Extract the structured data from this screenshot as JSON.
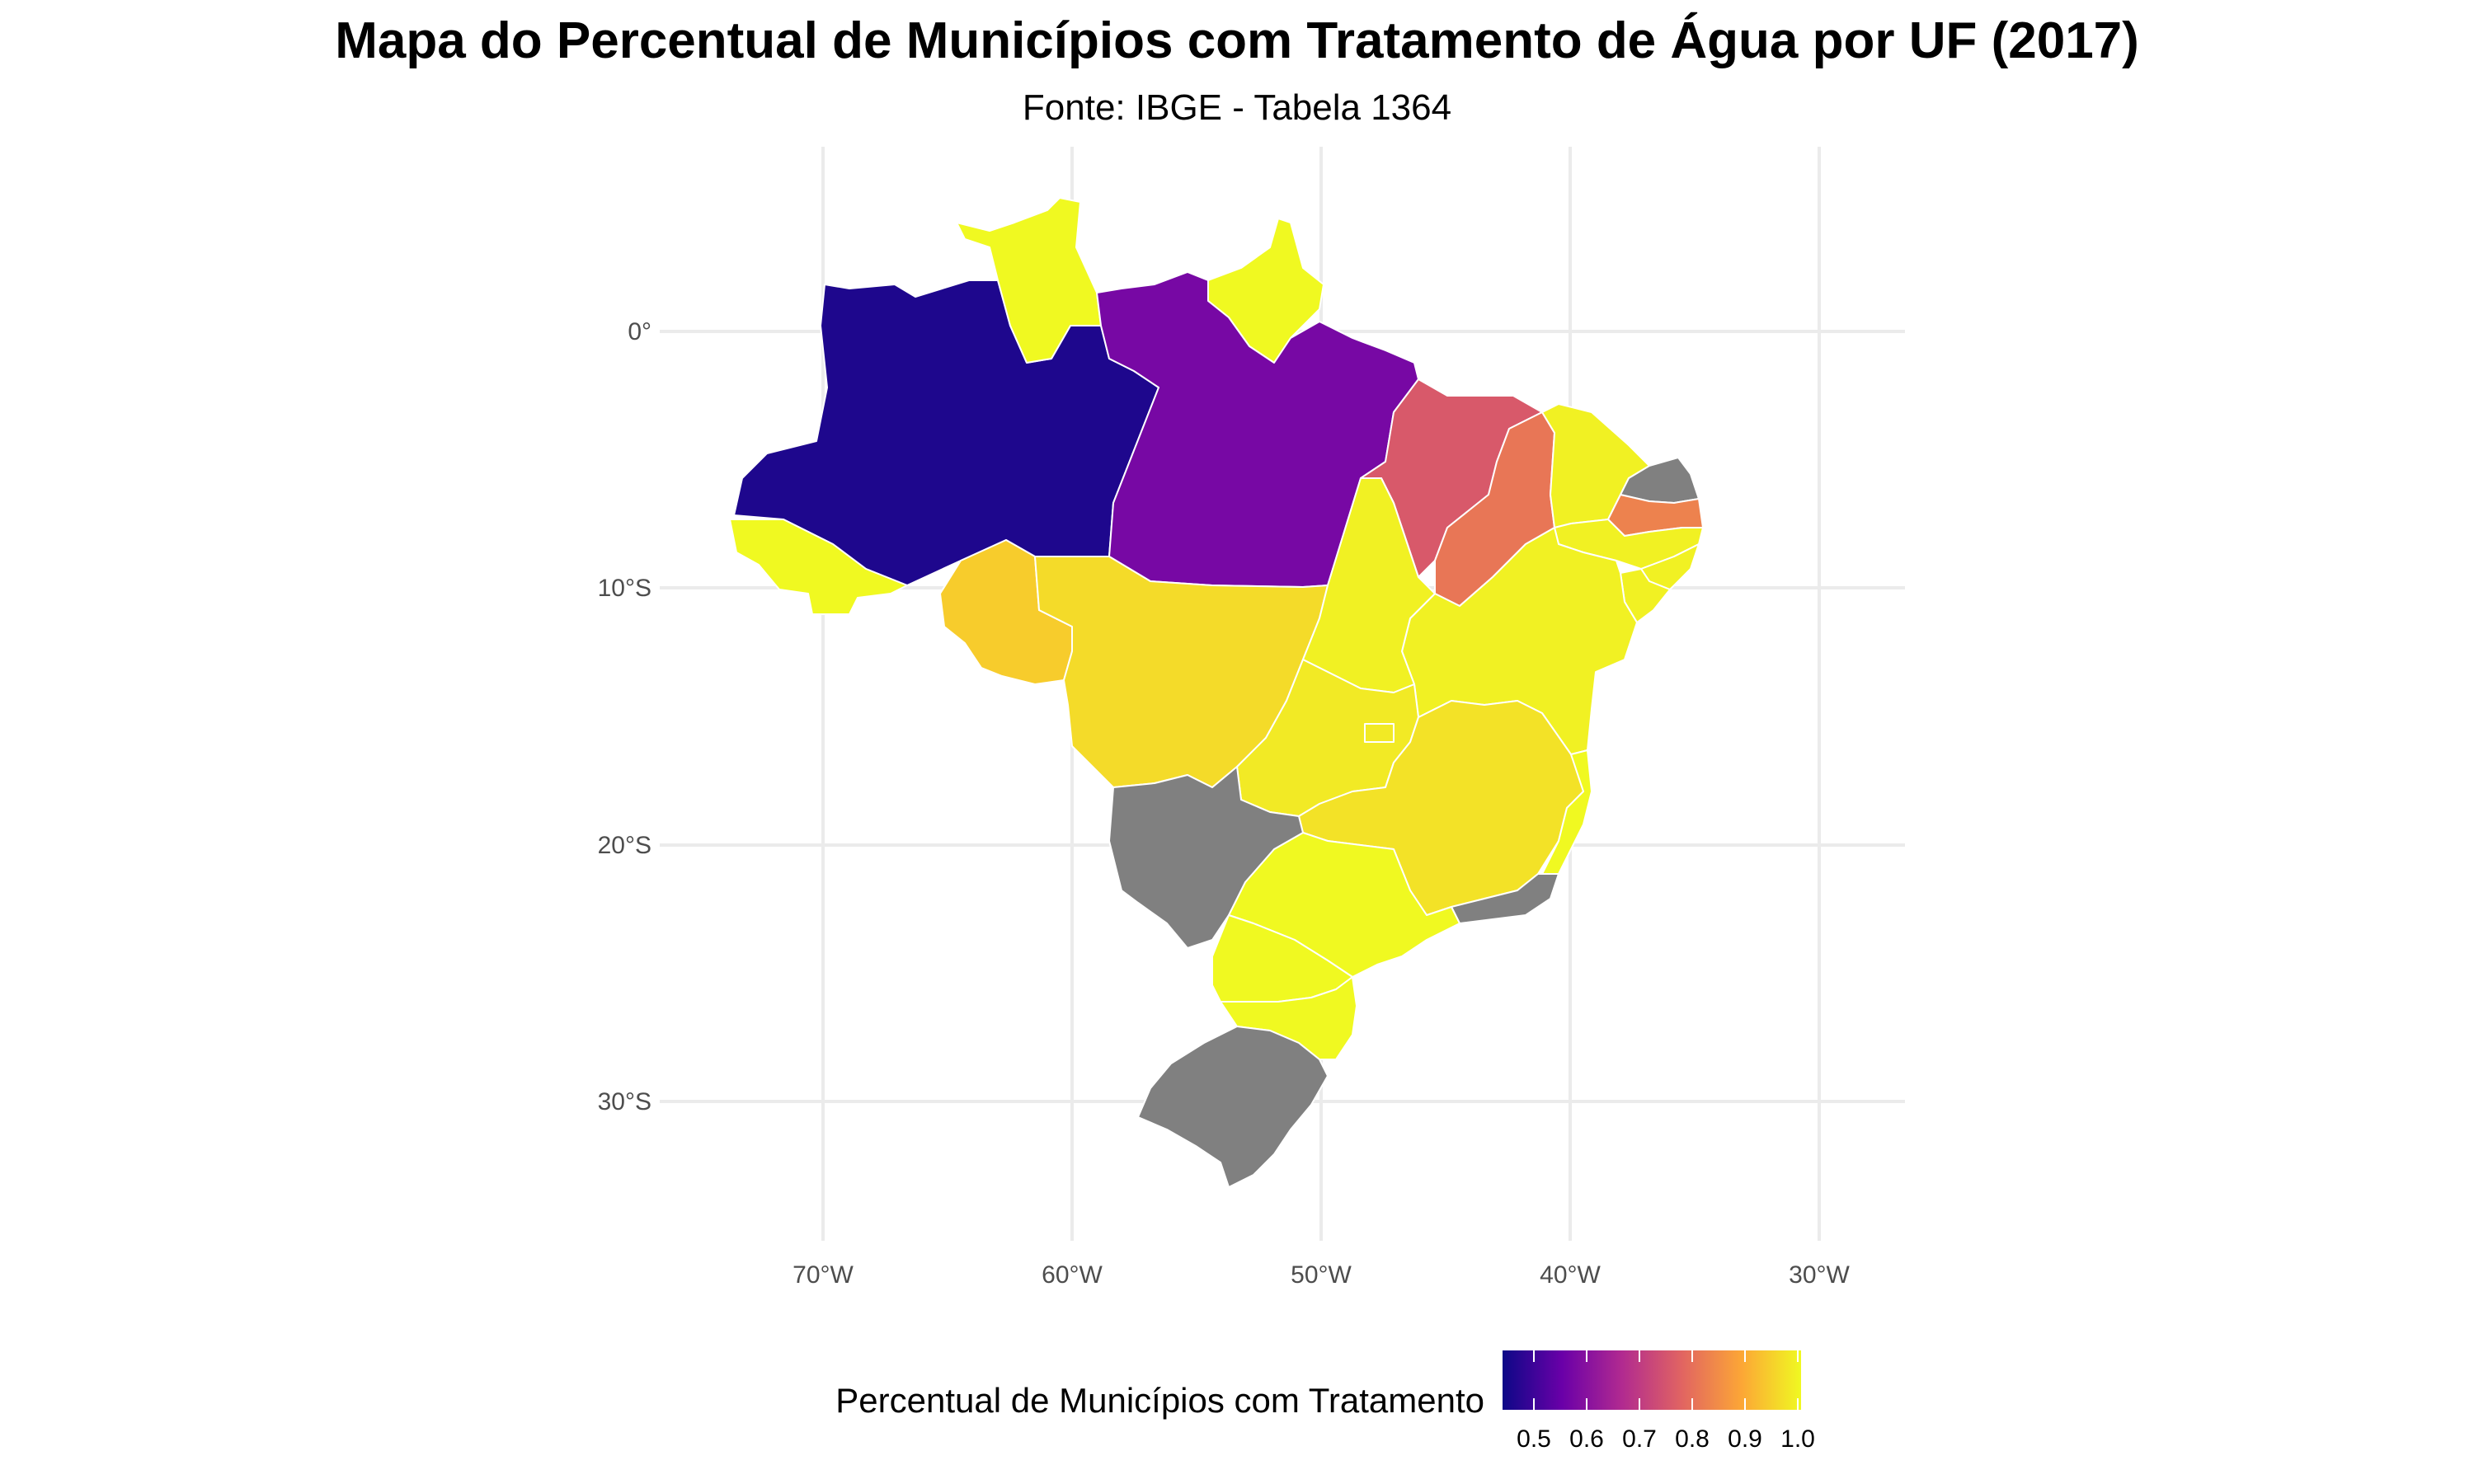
{
  "title": "Mapa do Percentual de Municípios com Tratamento de Água por UF (2017)",
  "subtitle": "Fonte: IBGE - Tabela 1364",
  "axes": {
    "lon_ticks": [
      "70°W",
      "60°W",
      "50°W",
      "40°W",
      "30°W"
    ],
    "lat_ticks": [
      "0°",
      "10°S",
      "20°S",
      "30°S"
    ],
    "grid": true
  },
  "legend": {
    "title": "Percentual de Municípios com Tratamento",
    "ticks": [
      "0.5",
      "0.6",
      "0.7",
      "0.8",
      "0.9",
      "1.0"
    ],
    "placement": "bottom",
    "colormap": "plasma",
    "colors": [
      "#0d0887",
      "#6a00a8",
      "#b12a90",
      "#e16462",
      "#fca636",
      "#f0f921"
    ]
  },
  "na_color": "#808080",
  "states": [
    {
      "id": "AM",
      "name": "Amazonas",
      "value": 0.47
    },
    {
      "id": "PA",
      "name": "Pará",
      "value": 0.58
    },
    {
      "id": "RR",
      "name": "Roraima",
      "value": 1.0
    },
    {
      "id": "AP",
      "name": "Amapá",
      "value": 1.0
    },
    {
      "id": "AC",
      "name": "Acre",
      "value": 1.0
    },
    {
      "id": "RO",
      "name": "Rondônia",
      "value": 0.94
    },
    {
      "id": "MT",
      "name": "Mato Grosso",
      "value": 0.96
    },
    {
      "id": "MA",
      "name": "Maranhão",
      "value": 0.76
    },
    {
      "id": "PI",
      "name": "Piauí",
      "value": 0.81
    },
    {
      "id": "CE",
      "name": "Ceará",
      "value": 0.99
    },
    {
      "id": "RN",
      "name": "Rio Grande do Norte",
      "value": null
    },
    {
      "id": "PB",
      "name": "Paraíba",
      "value": 0.83
    },
    {
      "id": "PE",
      "name": "Pernambuco",
      "value": 0.99
    },
    {
      "id": "AL",
      "name": "Alagoas",
      "value": 0.99
    },
    {
      "id": "SE",
      "name": "Sergipe",
      "value": 0.99
    },
    {
      "id": "BA",
      "name": "Bahia",
      "value": 0.99
    },
    {
      "id": "TO",
      "name": "Tocantins",
      "value": 0.99
    },
    {
      "id": "GO",
      "name": "Goiás",
      "value": 0.98
    },
    {
      "id": "DF",
      "name": "Distrito Federal",
      "value": 0.98
    },
    {
      "id": "MG",
      "name": "Minas Gerais",
      "value": 0.97
    },
    {
      "id": "ES",
      "name": "Espírito Santo",
      "value": 1.0
    },
    {
      "id": "RJ",
      "name": "Rio de Janeiro",
      "value": null
    },
    {
      "id": "SP",
      "name": "São Paulo",
      "value": 1.0
    },
    {
      "id": "MS",
      "name": "Mato Grosso do Sul",
      "value": null
    },
    {
      "id": "PR",
      "name": "Paraná",
      "value": 1.0
    },
    {
      "id": "SC",
      "name": "Santa Catarina",
      "value": 1.0
    },
    {
      "id": "RS",
      "name": "Rio Grande do Sul",
      "value": null
    }
  ]
}
